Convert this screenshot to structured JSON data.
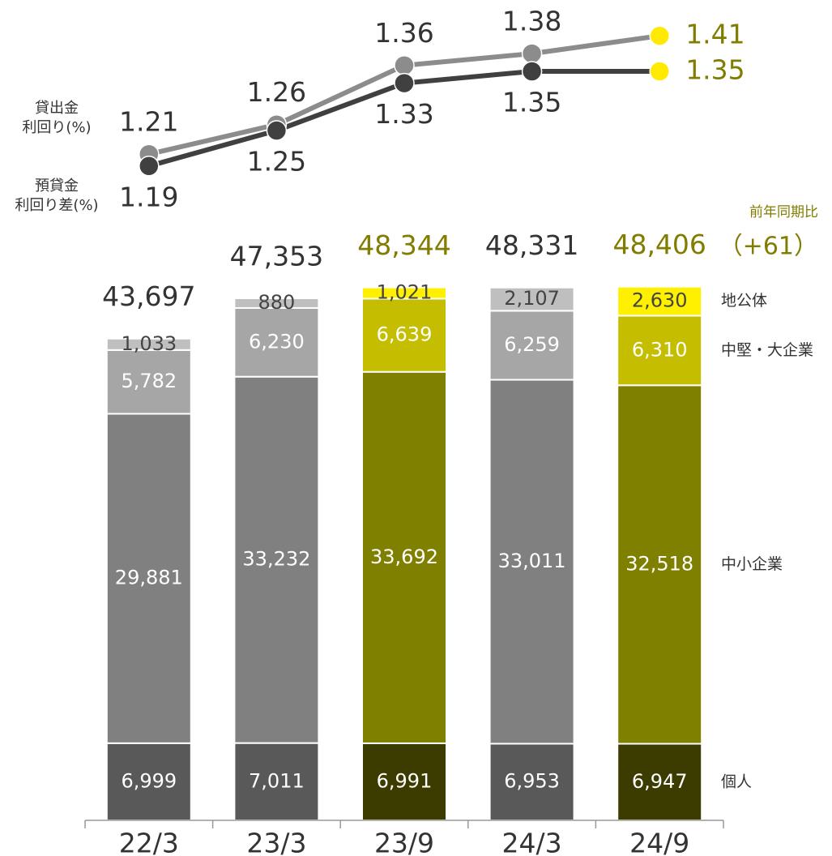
{
  "chart_data": [
    {
      "type": "stacked-bar",
      "categories": [
        "22/3",
        "23/3",
        "23/9",
        "24/3",
        "24/9"
      ],
      "ylim": [
        0,
        50000
      ],
      "series": [
        {
          "name": "個人",
          "values": [
            6999,
            7011,
            6991,
            6953,
            6947
          ],
          "value_labels": [
            "6,999",
            "7,011",
            "6,991",
            "6,953",
            "6,947"
          ],
          "colors": [
            "#595959",
            "#595959",
            "#3c3c00",
            "#595959",
            "#3c3c00"
          ],
          "label_color": "#ffffff"
        },
        {
          "name": "中小企業",
          "values": [
            29881,
            33232,
            33692,
            33011,
            32518
          ],
          "value_labels": [
            "29,881",
            "33,232",
            "33,692",
            "33,011",
            "32,518"
          ],
          "colors": [
            "#808080",
            "#808080",
            "#808000",
            "#808080",
            "#808000"
          ],
          "label_color": "#ffffff"
        },
        {
          "name": "中堅・大企業",
          "values": [
            5782,
            6230,
            6639,
            6259,
            6310
          ],
          "value_labels": [
            "5,782",
            "6,230",
            "6,639",
            "6,259",
            "6,310"
          ],
          "colors": [
            "#a6a6a6",
            "#a6a6a6",
            "#c4bd00",
            "#a6a6a6",
            "#c4bd00"
          ],
          "label_color": "#ffffff"
        },
        {
          "name": "地公体",
          "values": [
            1033,
            880,
            1021,
            2107,
            2630
          ],
          "value_labels": [
            "1,033",
            "880",
            "1,021",
            "2,107",
            "2,630"
          ],
          "colors": [
            "#bfbfbf",
            "#bfbfbf",
            "#fff000",
            "#bfbfbf",
            "#fff000"
          ],
          "label_color": "#444444"
        }
      ],
      "totals": {
        "values": [
          43697,
          47353,
          48344,
          48331,
          48406
        ],
        "value_labels": [
          "43,697",
          "47,353",
          "48,344",
          "48,331",
          "48,406"
        ],
        "colors": [
          "#333333",
          "#333333",
          "#807d00",
          "#333333",
          "#807d00"
        ]
      },
      "annotations": [
        "前年同期比",
        "（+61）"
      ],
      "annotation_color": "#807d00"
    },
    {
      "type": "line",
      "categories": [
        "22/3",
        "23/3",
        "23/9",
        "24/3",
        "24/9"
      ],
      "y2lim": [
        1.15,
        1.45
      ],
      "series": [
        {
          "name": "貸出金\n利回り(%)",
          "color": "#8c8c8c",
          "values": [
            1.21,
            1.26,
            1.36,
            1.38,
            1.41
          ],
          "point_colors": [
            "#8c8c8c",
            "#8c8c8c",
            "#8c8c8c",
            "#8c8c8c",
            "#ffea00"
          ],
          "label_colors": [
            "#333333",
            "#333333",
            "#333333",
            "#333333",
            "#807d00"
          ],
          "label_position": "above"
        },
        {
          "name": "預貸金\n利回り差(%)",
          "color": "#404040",
          "values": [
            1.19,
            1.25,
            1.33,
            1.35,
            1.35
          ],
          "point_colors": [
            "#404040",
            "#404040",
            "#404040",
            "#404040",
            "#ffea00"
          ],
          "label_colors": [
            "#333333",
            "#333333",
            "#333333",
            "#333333",
            "#807d00"
          ],
          "label_position": "below"
        }
      ]
    }
  ]
}
